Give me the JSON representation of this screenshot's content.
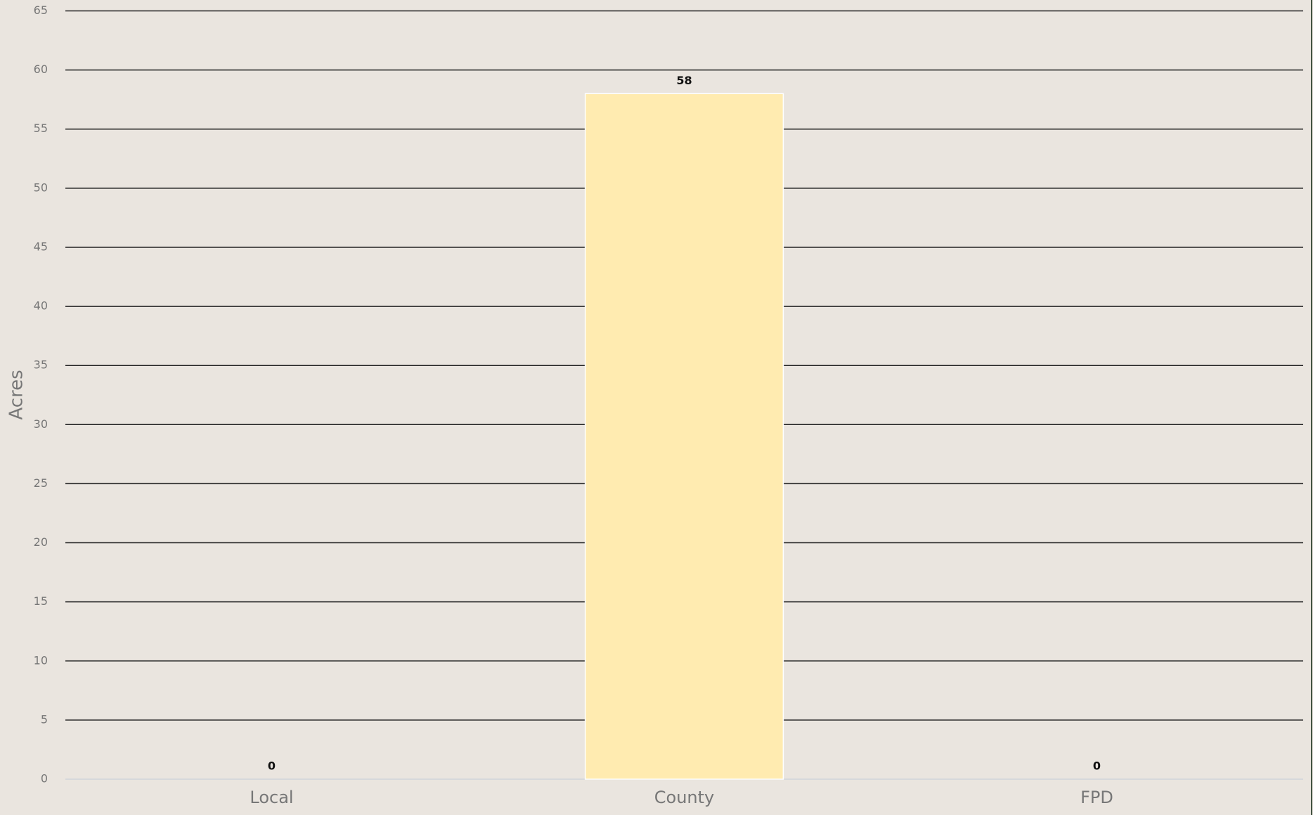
{
  "chart_data": {
    "type": "bar",
    "y_label": "Acres",
    "categories": [
      "Local",
      "County",
      "FPD"
    ],
    "values": [
      0,
      58,
      0
    ],
    "color": "#ffebb0",
    "ylim": [
      0,
      65
    ],
    "yticks": [
      0,
      5,
      10,
      15,
      20,
      25,
      30,
      35,
      40,
      45,
      50,
      55,
      60,
      65
    ],
    "grid": true
  }
}
